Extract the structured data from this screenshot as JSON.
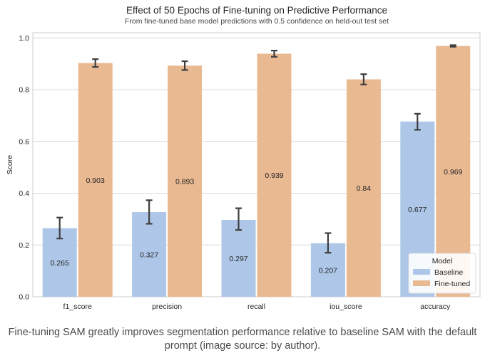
{
  "chart_data": {
    "type": "bar",
    "title": "Effect of 50 Epochs of Fine-tuning on Predictive Performance",
    "subtitle": "From fine-tuned base model predictions with 0.5 confidence on held-out test set",
    "xlabel": "",
    "ylabel": "Score",
    "ylim": [
      0,
      1.02
    ],
    "yticks": [
      "0.0",
      "0.2",
      "0.4",
      "0.6",
      "0.8",
      "1.0"
    ],
    "grid": true,
    "categories": [
      "f1_score",
      "precision",
      "recall",
      "iou_score",
      "accuracy"
    ],
    "legend": {
      "title": "Model",
      "placement": "lower-right"
    },
    "series": [
      {
        "name": "Baseline",
        "color": "#aec7e8",
        "values": [
          0.265,
          0.327,
          0.297,
          0.207,
          0.677
        ],
        "labels": [
          "0.265",
          "0.327",
          "0.297",
          "0.207",
          "0.677"
        ],
        "error_low": [
          0.225,
          0.282,
          0.258,
          0.17,
          0.645
        ],
        "error_high": [
          0.306,
          0.373,
          0.342,
          0.246,
          0.707
        ]
      },
      {
        "name": "Fine-tuned",
        "color": "#e9b992",
        "values": [
          0.903,
          0.893,
          0.939,
          0.84,
          0.969
        ],
        "labels": [
          "0.903",
          "0.893",
          "0.939",
          "0.84",
          "0.969"
        ],
        "error_low": [
          0.888,
          0.876,
          0.927,
          0.82,
          0.966
        ],
        "error_high": [
          0.918,
          0.91,
          0.951,
          0.86,
          0.972
        ]
      }
    ]
  },
  "caption": "Fine-tuning SAM greatly improves segmentation performance relative to baseline SAM with the default prompt (image source: by author).",
  "colors": {
    "text": "#262626",
    "axis": "#cccccc",
    "grid": "#d9d9d9",
    "errorbar": "#3f3f3f",
    "caption": "#4a4a4a"
  }
}
